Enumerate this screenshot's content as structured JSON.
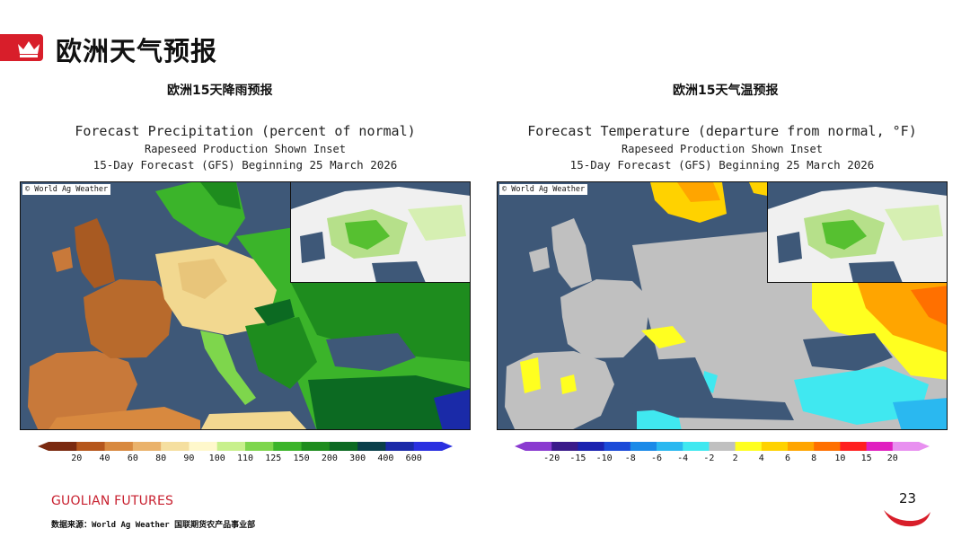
{
  "header": {
    "title": "欧洲天气预报",
    "icon": "crown-icon",
    "accent": "#d81e2a"
  },
  "left": {
    "section_title": "欧洲15天降雨预报",
    "title_line1": "Forecast Precipitation (percent of normal)",
    "title_line2": "Rapeseed Production Shown Inset",
    "title_line3": "15-Day Forecast (GFS) Beginning 25 March 2026",
    "credit": "© World Ag Weather",
    "colorbar": {
      "ticks": [
        "20",
        "40",
        "60",
        "80",
        "90",
        "100",
        "110",
        "125",
        "150",
        "200",
        "300",
        "400",
        "600"
      ],
      "colors": [
        "#7a2a10",
        "#b5561c",
        "#d8893f",
        "#eab26b",
        "#f5dfa0",
        "#fff8cc",
        "#c8f08c",
        "#7ed64c",
        "#3bb42a",
        "#1e8c1e",
        "#0c6a22",
        "#0a3f4a",
        "#1a2aa8",
        "#2a30e0"
      ]
    }
  },
  "right": {
    "section_title": "欧洲15天气温预报",
    "title_line1": "Forecast Temperature (departure from normal, °F)",
    "title_line2": "Rapeseed Production Shown Inset",
    "title_line3": "15-Day Forecast (GFS) Beginning 25 March 2026",
    "credit": "© World Ag Weather",
    "colorbar": {
      "ticks": [
        "-20",
        "-15",
        "-10",
        "-8",
        "-6",
        "-4",
        "-2",
        "2",
        "4",
        "6",
        "8",
        "10",
        "15",
        "20"
      ],
      "colors": [
        "#8a3ad0",
        "#3a1a8a",
        "#1a22b0",
        "#1a4ad8",
        "#1a8ae8",
        "#2ab8f0",
        "#40e8f0",
        "#c0c0c0",
        "#ffff20",
        "#ffd200",
        "#ffa500",
        "#ff7000",
        "#ff2020",
        "#e020c0",
        "#e890f0"
      ]
    }
  },
  "footer": {
    "brand": "GUOLIAN FUTURES",
    "source": "数据来源：World Ag Weather 国联期货农产品事业部",
    "page_number": "23"
  }
}
